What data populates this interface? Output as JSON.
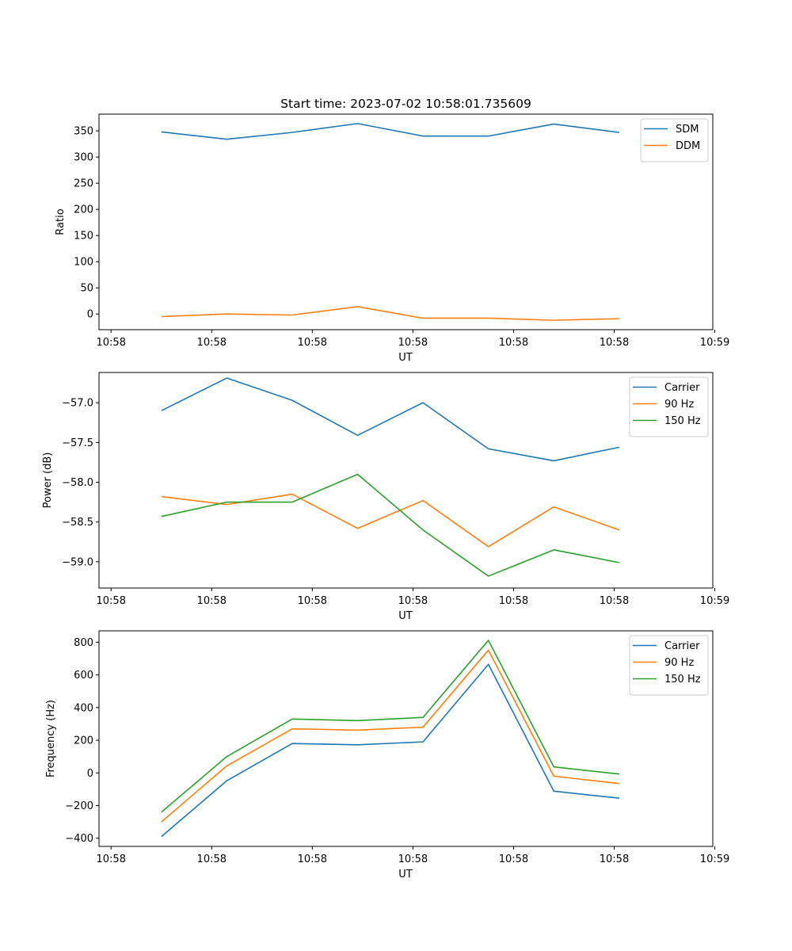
{
  "figure": {
    "title": "Start time: 2023-07-02 10:58:01.735609"
  },
  "colors": {
    "blue": "#1f77b4",
    "orange": "#ff7f0e",
    "green": "#2ca02c"
  },
  "chart_data": [
    {
      "type": "line",
      "title": "Start time: 2023-07-02 10:58:01.735609",
      "xlabel": "UT",
      "ylabel": "Ratio",
      "x": [
        0.5,
        1.15,
        1.8,
        2.45,
        3.1,
        3.75,
        4.4,
        5.05
      ],
      "xlim": [
        -0.12,
        5.98
      ],
      "xticks": [
        0,
        1,
        2,
        3,
        4,
        5,
        6
      ],
      "xtick_labels": [
        "10:58",
        "10:58",
        "10:58",
        "10:58",
        "10:58",
        "10:58",
        "10:59"
      ],
      "ylim": [
        -30,
        382
      ],
      "yticks": [
        0,
        50,
        100,
        150,
        200,
        250,
        300,
        350
      ],
      "ytick_labels": [
        "0",
        "50",
        "100",
        "150",
        "200",
        "250",
        "300",
        "350"
      ],
      "legend": "top-right",
      "series": [
        {
          "name": "SDM",
          "color": "blue",
          "values": [
            348,
            334,
            347,
            364,
            340,
            340,
            363,
            347
          ]
        },
        {
          "name": "DDM",
          "color": "orange",
          "values": [
            -5,
            0,
            -2,
            14,
            -8,
            -8,
            -12,
            -9
          ]
        }
      ]
    },
    {
      "type": "line",
      "title": "",
      "xlabel": "UT",
      "ylabel": "Power (dB)",
      "x": [
        0.5,
        1.15,
        1.8,
        2.45,
        3.1,
        3.75,
        4.4,
        5.05
      ],
      "xlim": [
        -0.12,
        5.98
      ],
      "xticks": [
        0,
        1,
        2,
        3,
        4,
        5,
        6
      ],
      "xtick_labels": [
        "10:58",
        "10:58",
        "10:58",
        "10:58",
        "10:58",
        "10:58",
        "10:59"
      ],
      "ylim": [
        -59.33,
        -56.62
      ],
      "yticks": [
        -59.0,
        -58.5,
        -58.0,
        -57.5,
        -57.0
      ],
      "ytick_labels": [
        "−59.0",
        "−58.5",
        "−58.0",
        "−57.5",
        "−57.0"
      ],
      "legend": "top-right",
      "series": [
        {
          "name": "Carrier",
          "color": "blue",
          "values": [
            -57.1,
            -56.69,
            -56.97,
            -57.41,
            -57.0,
            -57.58,
            -57.73,
            -57.56
          ]
        },
        {
          "name": "90 Hz",
          "color": "orange",
          "values": [
            -58.18,
            -58.28,
            -58.15,
            -58.58,
            -58.23,
            -58.81,
            -58.31,
            -58.6
          ]
        },
        {
          "name": "150 Hz",
          "color": "green",
          "values": [
            -58.43,
            -58.25,
            -58.25,
            -57.9,
            -58.6,
            -59.18,
            -58.85,
            -59.01
          ]
        }
      ]
    },
    {
      "type": "line",
      "title": "",
      "xlabel": "UT",
      "ylabel": "Frequency (Hz)",
      "x": [
        0.5,
        1.15,
        1.8,
        2.45,
        3.1,
        3.75,
        4.4,
        5.05
      ],
      "xlim": [
        -0.12,
        5.98
      ],
      "xticks": [
        0,
        1,
        2,
        3,
        4,
        5,
        6
      ],
      "xtick_labels": [
        "10:58",
        "10:58",
        "10:58",
        "10:58",
        "10:58",
        "10:58",
        "10:59"
      ],
      "ylim": [
        -450,
        870
      ],
      "yticks": [
        -400,
        -200,
        0,
        200,
        400,
        600,
        800
      ],
      "ytick_labels": [
        "−400",
        "−200",
        "0",
        "200",
        "400",
        "600",
        "800"
      ],
      "legend": "top-right",
      "series": [
        {
          "name": "Carrier",
          "color": "blue",
          "values": [
            -390,
            -48,
            180,
            172,
            190,
            665,
            -112,
            -155
          ]
        },
        {
          "name": "90 Hz",
          "color": "orange",
          "values": [
            -300,
            43,
            270,
            262,
            280,
            752,
            -20,
            -65
          ]
        },
        {
          "name": "150 Hz",
          "color": "green",
          "values": [
            -240,
            100,
            330,
            320,
            340,
            812,
            37,
            -7
          ]
        }
      ]
    }
  ]
}
